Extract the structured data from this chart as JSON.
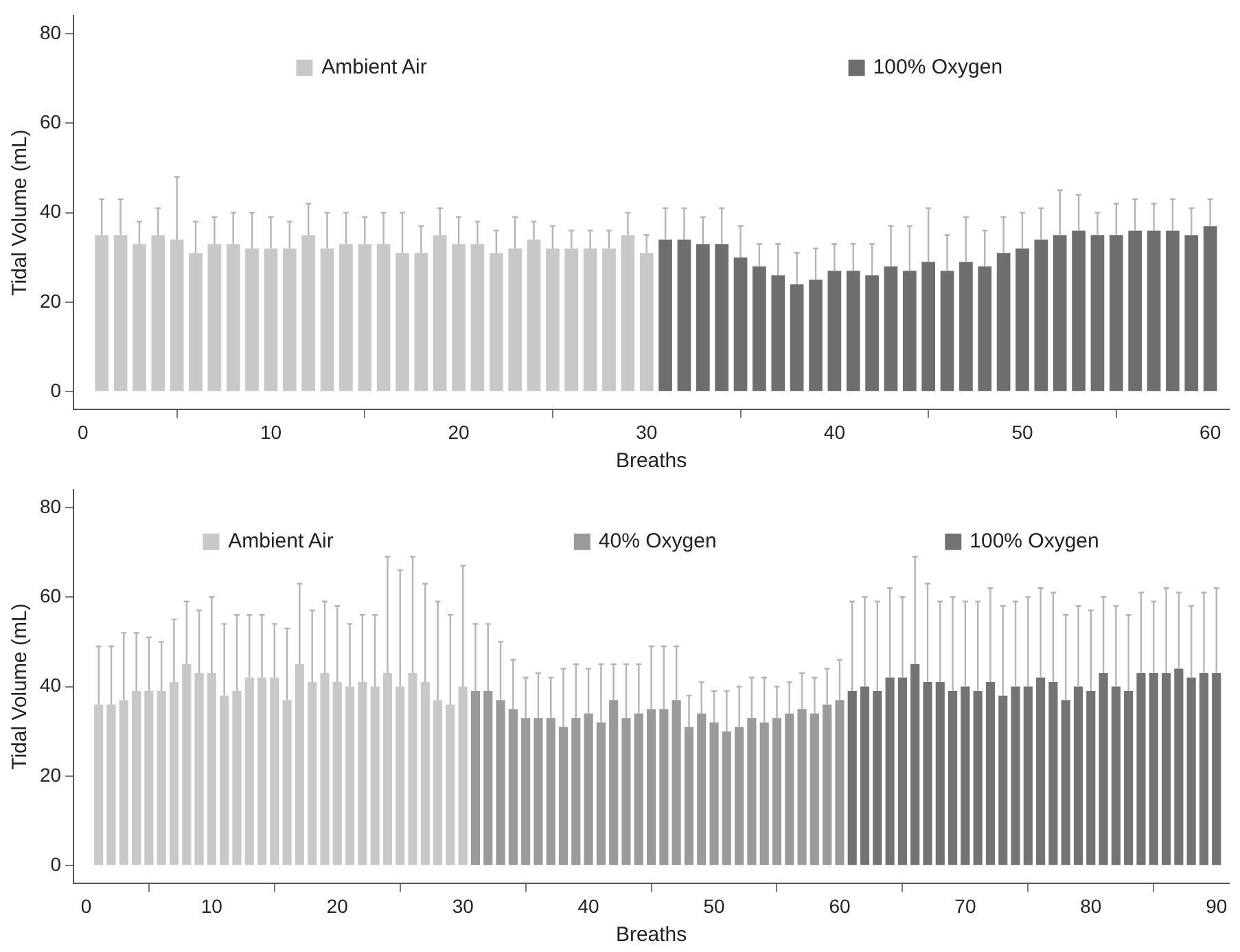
{
  "chart_data": [
    {
      "type": "bar",
      "xlabel": "Breaths",
      "ylabel": "Tidal Volume (mL)",
      "xlim": [
        -0.5,
        61
      ],
      "xticks": [
        0,
        10,
        20,
        30,
        40,
        50,
        60
      ],
      "ylim": [
        -4,
        84
      ],
      "yticks": [
        0,
        20,
        40,
        60,
        80
      ],
      "grid": false,
      "legend": "top",
      "series": [
        {
          "name": "Ambient Air",
          "color": "#c8c8c8",
          "x": [
            1,
            2,
            3,
            4,
            5,
            6,
            7,
            8,
            9,
            10,
            11,
            12,
            13,
            14,
            15,
            16,
            17,
            18,
            19,
            20,
            21,
            22,
            23,
            24,
            25,
            26,
            27,
            28,
            29,
            30
          ],
          "values": [
            35,
            35,
            33,
            35,
            34,
            31,
            33,
            33,
            32,
            32,
            32,
            35,
            32,
            33,
            33,
            33,
            31,
            31,
            35,
            33,
            33,
            31,
            32,
            34,
            32,
            32,
            32,
            32,
            35,
            31
          ],
          "errors": [
            [
              35,
              43
            ],
            [
              35,
              43
            ],
            [
              33,
              38
            ],
            [
              35,
              41
            ],
            [
              34,
              48
            ],
            [
              31,
              38
            ],
            [
              33,
              39
            ],
            [
              33,
              40
            ],
            [
              32,
              40
            ],
            [
              32,
              39
            ],
            [
              32,
              38
            ],
            [
              35,
              42
            ],
            [
              32,
              40
            ],
            [
              33,
              40
            ],
            [
              33,
              39
            ],
            [
              33,
              40
            ],
            [
              31,
              40
            ],
            [
              31,
              37
            ],
            [
              35,
              41
            ],
            [
              33,
              39
            ],
            [
              33,
              38
            ],
            [
              31,
              36
            ],
            [
              32,
              39
            ],
            [
              34,
              38
            ],
            [
              32,
              37
            ],
            [
              32,
              36
            ],
            [
              32,
              36
            ],
            [
              32,
              36
            ],
            [
              35,
              40
            ],
            [
              31,
              35
            ]
          ]
        },
        {
          "name": "100% Oxygen",
          "color": "#6e6e6e",
          "x": [
            31,
            32,
            33,
            34,
            35,
            36,
            37,
            38,
            39,
            40,
            41,
            42,
            43,
            44,
            45,
            46,
            47,
            48,
            49,
            50,
            51,
            52,
            53,
            54,
            55,
            56,
            57,
            58,
            59,
            60
          ],
          "values": [
            34,
            34,
            33,
            33,
            30,
            28,
            26,
            24,
            25,
            27,
            27,
            26,
            28,
            27,
            29,
            27,
            29,
            28,
            31,
            32,
            34,
            35,
            36,
            35,
            35,
            36,
            36,
            36,
            35,
            37
          ],
          "errors": [
            [
              34,
              41
            ],
            [
              34,
              41
            ],
            [
              33,
              39
            ],
            [
              33,
              41
            ],
            [
              30,
              37
            ],
            [
              28,
              33
            ],
            [
              26,
              33
            ],
            [
              24,
              31
            ],
            [
              25,
              32
            ],
            [
              27,
              33
            ],
            [
              27,
              33
            ],
            [
              26,
              33
            ],
            [
              28,
              37
            ],
            [
              27,
              37
            ],
            [
              29,
              41
            ],
            [
              27,
              35
            ],
            [
              29,
              39
            ],
            [
              28,
              36
            ],
            [
              31,
              39
            ],
            [
              32,
              40
            ],
            [
              34,
              41
            ],
            [
              35,
              45
            ],
            [
              36,
              44
            ],
            [
              35,
              40
            ],
            [
              35,
              42
            ],
            [
              36,
              43
            ],
            [
              36,
              42
            ],
            [
              36,
              43
            ],
            [
              35,
              41
            ],
            [
              37,
              43
            ]
          ]
        }
      ]
    },
    {
      "type": "bar",
      "xlabel": "Breaths",
      "ylabel": "Tidal Volume (mL)",
      "xlim": [
        -1,
        91
      ],
      "xticks": [
        0,
        10,
        20,
        30,
        40,
        50,
        60,
        70,
        80,
        90
      ],
      "ylim": [
        -4,
        84
      ],
      "yticks": [
        0,
        20,
        40,
        60,
        80
      ],
      "grid": false,
      "legend": "top",
      "series": [
        {
          "name": "Ambient Air",
          "color": "#c8c8c8",
          "x": [
            1,
            2,
            3,
            4,
            5,
            6,
            7,
            8,
            9,
            10,
            11,
            12,
            13,
            14,
            15,
            16,
            17,
            18,
            19,
            20,
            21,
            22,
            23,
            24,
            25,
            26,
            27,
            28,
            29,
            30
          ],
          "values": [
            36,
            36,
            37,
            39,
            39,
            39,
            41,
            45,
            43,
            43,
            38,
            39,
            42,
            42,
            42,
            37,
            45,
            41,
            43,
            41,
            40,
            41,
            40,
            43,
            40,
            43,
            41,
            37,
            36,
            40
          ],
          "errors": [
            [
              36,
              49
            ],
            [
              36,
              49
            ],
            [
              37,
              52
            ],
            [
              39,
              52
            ],
            [
              39,
              51
            ],
            [
              39,
              50
            ],
            [
              41,
              55
            ],
            [
              45,
              59
            ],
            [
              43,
              57
            ],
            [
              43,
              60
            ],
            [
              38,
              54
            ],
            [
              39,
              56
            ],
            [
              42,
              56
            ],
            [
              42,
              56
            ],
            [
              42,
              54
            ],
            [
              37,
              53
            ],
            [
              45,
              63
            ],
            [
              41,
              57
            ],
            [
              43,
              59
            ],
            [
              41,
              58
            ],
            [
              40,
              54
            ],
            [
              41,
              56
            ],
            [
              40,
              56
            ],
            [
              43,
              69
            ],
            [
              40,
              66
            ],
            [
              43,
              69
            ],
            [
              41,
              63
            ],
            [
              37,
              59
            ],
            [
              36,
              56
            ],
            [
              40,
              67
            ]
          ]
        },
        {
          "name": "40% Oxygen",
          "color": "#9a9a9a",
          "x": [
            31,
            32,
            33,
            34,
            35,
            36,
            37,
            38,
            39,
            40,
            41,
            42,
            43,
            44,
            45,
            46,
            47,
            48,
            49,
            50,
            51,
            52,
            53,
            54,
            55,
            56,
            57,
            58,
            59,
            60
          ],
          "values": [
            39,
            39,
            37,
            35,
            33,
            33,
            33,
            31,
            33,
            34,
            32,
            37,
            33,
            34,
            35,
            35,
            37,
            31,
            34,
            32,
            30,
            31,
            33,
            32,
            33,
            34,
            35,
            34,
            36,
            37
          ],
          "errors": [
            [
              39,
              54
            ],
            [
              39,
              54
            ],
            [
              37,
              50
            ],
            [
              35,
              46
            ],
            [
              33,
              42
            ],
            [
              33,
              43
            ],
            [
              33,
              42
            ],
            [
              31,
              44
            ],
            [
              33,
              45
            ],
            [
              34,
              44
            ],
            [
              32,
              45
            ],
            [
              37,
              45
            ],
            [
              33,
              45
            ],
            [
              34,
              45
            ],
            [
              35,
              49
            ],
            [
              35,
              49
            ],
            [
              37,
              49
            ],
            [
              31,
              38
            ],
            [
              34,
              41
            ],
            [
              32,
              39
            ],
            [
              30,
              39
            ],
            [
              31,
              40
            ],
            [
              33,
              42
            ],
            [
              32,
              42
            ],
            [
              33,
              40
            ],
            [
              34,
              41
            ],
            [
              35,
              43
            ],
            [
              34,
              42
            ],
            [
              36,
              44
            ],
            [
              37,
              46
            ]
          ]
        },
        {
          "name": "100% Oxygen",
          "color": "#737373",
          "x": [
            61,
            62,
            63,
            64,
            65,
            66,
            67,
            68,
            69,
            70,
            71,
            72,
            73,
            74,
            75,
            76,
            77,
            78,
            79,
            80,
            81,
            82,
            83,
            84,
            85,
            86,
            87,
            88,
            89,
            90
          ],
          "values": [
            39,
            40,
            39,
            42,
            42,
            45,
            41,
            41,
            39,
            40,
            39,
            41,
            38,
            40,
            40,
            42,
            41,
            37,
            40,
            39,
            43,
            40,
            39,
            43,
            43,
            43,
            44,
            42,
            43,
            43
          ],
          "errors": [
            [
              39,
              59
            ],
            [
              40,
              60
            ],
            [
              39,
              59
            ],
            [
              42,
              62
            ],
            [
              42,
              60
            ],
            [
              45,
              69
            ],
            [
              41,
              63
            ],
            [
              41,
              59
            ],
            [
              39,
              60
            ],
            [
              40,
              59
            ],
            [
              39,
              59
            ],
            [
              41,
              62
            ],
            [
              38,
              58
            ],
            [
              40,
              59
            ],
            [
              40,
              60
            ],
            [
              42,
              62
            ],
            [
              41,
              61
            ],
            [
              37,
              56
            ],
            [
              40,
              58
            ],
            [
              39,
              57
            ],
            [
              43,
              60
            ],
            [
              40,
              58
            ],
            [
              39,
              56
            ],
            [
              43,
              61
            ],
            [
              43,
              59
            ],
            [
              43,
              62
            ],
            [
              44,
              61
            ],
            [
              42,
              58
            ],
            [
              43,
              61
            ],
            [
              43,
              62
            ]
          ]
        }
      ]
    }
  ]
}
